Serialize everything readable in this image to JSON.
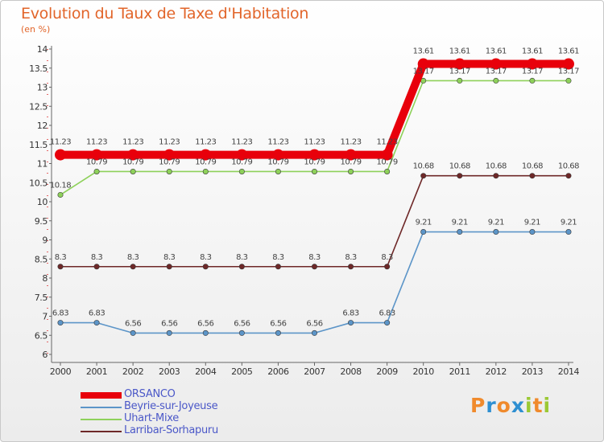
{
  "title": "Evolution du Taux de Taxe d'Habitation",
  "unit": "(en %)",
  "logo": {
    "letters": [
      "P",
      "r",
      "o",
      "x",
      "i",
      "t",
      "i"
    ],
    "colors": [
      "#f08a2c",
      "#2e8fd1",
      "#f08a2c",
      "#2e8fd1",
      "#9bc934",
      "#f08a2c",
      "#9bc934"
    ]
  },
  "chart_data": {
    "type": "line",
    "x": [
      2000,
      2001,
      2002,
      2003,
      2004,
      2005,
      2006,
      2007,
      2008,
      2009,
      2010,
      2011,
      2012,
      2013,
      2014
    ],
    "ylim": [
      6,
      14
    ],
    "yticks": [
      6,
      6.5,
      7,
      7.5,
      8,
      8.5,
      9,
      9.5,
      10,
      10.5,
      11,
      11.5,
      12,
      12.5,
      13,
      13.5,
      14
    ],
    "ytick_labels": [
      "6",
      "6.5",
      "7",
      "7.5",
      "8",
      "8.5",
      "9",
      "9.5",
      "10",
      "10.5",
      "11",
      "11.5",
      "12",
      "12.5",
      "13",
      "13.5",
      "14"
    ],
    "grid": false,
    "legend_position": "bottom-left",
    "series": [
      {
        "name": "ORSANCO",
        "color": "#e8000b",
        "values": [
          11.23,
          11.23,
          11.23,
          11.23,
          11.23,
          11.23,
          11.23,
          11.23,
          11.23,
          11.23,
          13.61,
          13.61,
          13.61,
          13.61,
          13.61
        ],
        "labels": [
          "11.23",
          "11.23",
          "11.23",
          "11.23",
          "11.23",
          "11.23",
          "11.23",
          "11.23",
          "11.23",
          "11.23",
          "13.61",
          "13.61",
          "13.61",
          "13.61",
          "13.61"
        ]
      },
      {
        "name": "Beyrie-sur-Joyeuse",
        "color": "#5c95c8",
        "values": [
          6.83,
          6.83,
          6.56,
          6.56,
          6.56,
          6.56,
          6.56,
          6.56,
          6.83,
          6.83,
          9.21,
          9.21,
          9.21,
          9.21,
          9.21
        ],
        "labels": [
          "6.83",
          "6.83",
          "6.56",
          "6.56",
          "6.56",
          "6.56",
          "6.56",
          "6.56",
          "6.83",
          "6.83",
          "9.21",
          "9.21",
          "9.21",
          "9.21",
          "9.21"
        ]
      },
      {
        "name": "Uhart-Mixe",
        "color": "#8ed15a",
        "values": [
          10.18,
          10.79,
          10.79,
          10.79,
          10.79,
          10.79,
          10.79,
          10.79,
          10.79,
          10.79,
          13.17,
          13.17,
          13.17,
          13.17,
          13.17
        ],
        "labels": [
          "10.18",
          "10.79",
          "10.79",
          "10.79",
          "10.79",
          "10.79",
          "10.79",
          "10.79",
          "10.79",
          "10.79",
          "13.17",
          "13.17",
          "13.17",
          "13.17",
          "13.17"
        ]
      },
      {
        "name": "Larribar-Sorhapuru",
        "color": "#6e2828",
        "values": [
          8.3,
          8.3,
          8.3,
          8.3,
          8.3,
          8.3,
          8.3,
          8.3,
          8.3,
          8.3,
          10.68,
          10.68,
          10.68,
          10.68,
          10.68
        ],
        "labels": [
          "8.3",
          "8.3",
          "8.3",
          "8.3",
          "8.3",
          "8.3",
          "8.3",
          "8.3",
          "8.3",
          "8.3",
          "10.68",
          "10.68",
          "10.68",
          "10.68",
          "10.68"
        ]
      }
    ]
  }
}
